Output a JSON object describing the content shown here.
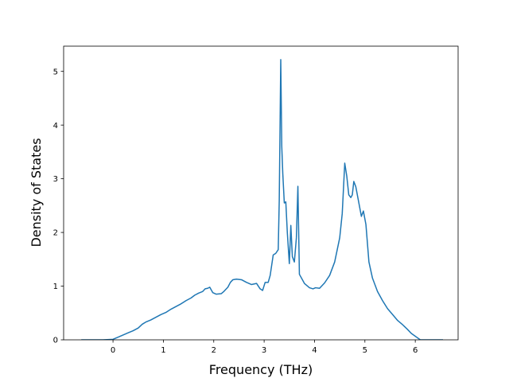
{
  "chart_data": {
    "type": "line",
    "xlabel": "Frequency (THz)",
    "ylabel": "Density of States",
    "xlim": [
      -0.98,
      6.85
    ],
    "ylim": [
      0,
      5.47
    ],
    "x_ticks": [
      0,
      1,
      2,
      3,
      4,
      5,
      6
    ],
    "y_ticks": [
      0,
      1,
      2,
      3,
      4,
      5
    ],
    "grid": false,
    "colors": {
      "line": "#1f77b4",
      "axis": "#000000"
    },
    "series": [
      {
        "x": [
          -0.63,
          -0.2,
          0.0,
          0.1,
          0.2,
          0.3,
          0.4,
          0.5,
          0.58,
          0.65,
          0.75,
          0.85,
          0.95,
          1.05,
          1.15,
          1.25,
          1.35,
          1.45,
          1.55,
          1.62,
          1.7,
          1.78,
          1.83,
          1.88,
          1.92,
          1.98,
          2.05,
          2.15,
          2.2,
          2.28,
          2.33,
          2.38,
          2.45,
          2.55,
          2.65,
          2.75,
          2.85,
          2.92,
          2.97,
          3.02,
          3.08,
          3.12,
          3.18,
          3.23,
          3.28,
          3.3,
          3.33,
          3.35,
          3.37,
          3.4,
          3.43,
          3.46,
          3.5,
          3.53,
          3.56,
          3.6,
          3.64,
          3.67,
          3.7,
          3.8,
          3.9,
          3.97,
          4.02,
          4.1,
          4.2,
          4.3,
          4.4,
          4.5,
          4.55,
          4.6,
          4.64,
          4.68,
          4.72,
          4.75,
          4.78,
          4.82,
          4.86,
          4.9,
          4.93,
          4.97,
          5.02,
          5.08,
          5.15,
          5.25,
          5.35,
          5.45,
          5.55,
          5.65,
          5.75,
          5.85,
          5.92,
          6.1,
          6.55
        ],
        "y": [
          0,
          0,
          0.01,
          0.05,
          0.09,
          0.13,
          0.17,
          0.22,
          0.29,
          0.33,
          0.37,
          0.42,
          0.47,
          0.51,
          0.57,
          0.62,
          0.67,
          0.73,
          0.78,
          0.83,
          0.87,
          0.9,
          0.95,
          0.96,
          0.98,
          0.88,
          0.85,
          0.86,
          0.9,
          0.98,
          1.07,
          1.12,
          1.13,
          1.12,
          1.07,
          1.03,
          1.05,
          0.95,
          0.92,
          1.07,
          1.07,
          1.2,
          1.58,
          1.61,
          1.68,
          2.6,
          5.22,
          3.6,
          3.1,
          2.55,
          2.57,
          2.0,
          1.42,
          2.13,
          1.55,
          1.45,
          1.9,
          2.86,
          1.22,
          1.05,
          0.97,
          0.95,
          0.97,
          0.96,
          1.06,
          1.2,
          1.45,
          1.9,
          2.35,
          3.29,
          3.05,
          2.7,
          2.65,
          2.7,
          2.95,
          2.85,
          2.65,
          2.45,
          2.3,
          2.4,
          2.15,
          1.45,
          1.15,
          0.9,
          0.73,
          0.58,
          0.47,
          0.36,
          0.28,
          0.19,
          0.12,
          0,
          0
        ]
      }
    ]
  }
}
